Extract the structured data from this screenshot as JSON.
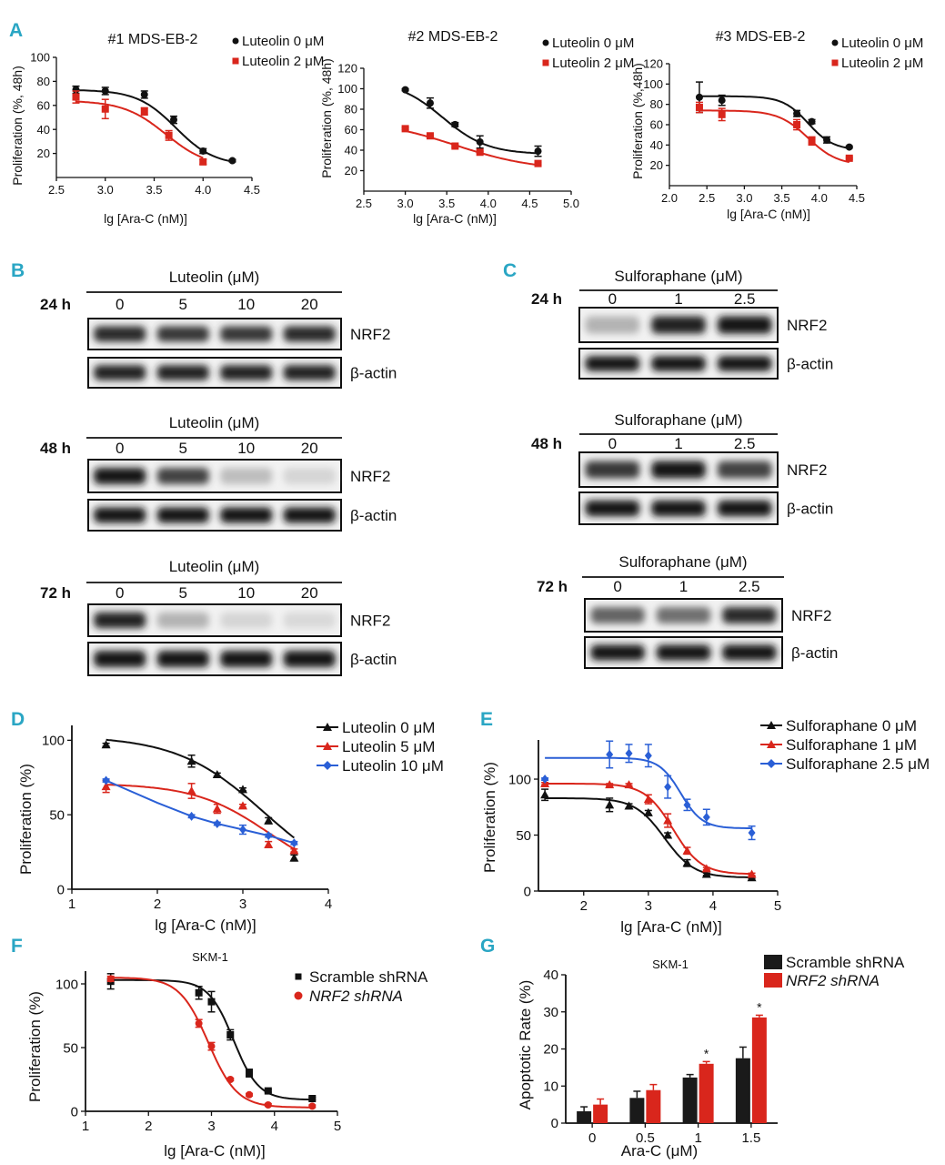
{
  "colors": {
    "black": "#111111",
    "red": "#d9261c",
    "blue": "#2a5fd6",
    "panel_label": "#2aa6c4",
    "bar_black": "#1a1a1a",
    "bar_red": "#d9261c"
  },
  "panel_labels": [
    "A",
    "B",
    "C",
    "D",
    "E",
    "F",
    "G"
  ],
  "axis_labels": {
    "A1_y": "Proliferation (%, 48h)",
    "A2_y": "Proliferation (%, 48h)",
    "A3_y": "Proliferation (%,48h)",
    "A_x": "lg [Ara-C (nM)]",
    "D_y": "Proliferation (%)",
    "D_x": "lg [Ara-C (nM)]",
    "E_y": "Proliferation (%)",
    "E_x": "lg [Ara-C (nM)]",
    "F_y": "Proliferation (%)",
    "F_x": "lg [Ara-C (nM)]",
    "G_y": "Apoptotic Rate (%)",
    "G_x": "Ara-C (μM)"
  },
  "legends": {
    "A": [
      "Luteolin 0 μM",
      "Luteolin 2 μM"
    ],
    "D": [
      "Luteolin 0 μM",
      "Luteolin 5 μM",
      "Luteolin 10 μM"
    ],
    "E": [
      "Sulforaphane 0 μM",
      "Sulforaphane 1 μM",
      "Sulforaphane 2.5 μM"
    ],
    "F": [
      "Scramble shRNA",
      "NRF2 shRNA"
    ],
    "G": [
      "Scramble shRNA",
      "NRF2 shRNA"
    ]
  },
  "chart_data": [
    {
      "id": "A1",
      "type": "line",
      "title": "#1 MDS-EB-2",
      "xlabel": "lg [Ara-C (nM)]",
      "ylabel": "Proliferation (%, 48h)",
      "xlim": [
        2.5,
        4.5
      ],
      "ylim": [
        0,
        100
      ],
      "xticks": [
        "2.5",
        "3.0",
        "3.5",
        "4.0",
        "4.5"
      ],
      "yticks": [
        "20",
        "40",
        "60",
        "80",
        "100"
      ],
      "series": [
        {
          "name": "Luteolin 0 μM",
          "color": "#111111",
          "marker": "circle",
          "x": [
            2.7,
            3.0,
            3.4,
            3.7,
            4.0,
            4.3
          ],
          "y": [
            73,
            72,
            69,
            48,
            22,
            14
          ],
          "err": [
            3,
            3,
            3,
            3,
            2,
            1
          ],
          "fit": {
            "top": 73,
            "bottom": 10,
            "ic50": 3.72,
            "slope": 2.2
          }
        },
        {
          "name": "Luteolin 2 μM",
          "color": "#d9261c",
          "marker": "square",
          "x": [
            2.7,
            3.0,
            3.4,
            3.65,
            4.0
          ],
          "y": [
            67,
            57,
            55,
            35,
            13
          ],
          "err": [
            5,
            8,
            3,
            4,
            2
          ],
          "fit": {
            "top": 64,
            "bottom": 8,
            "ic50": 3.62,
            "slope": 2.0
          }
        }
      ]
    },
    {
      "id": "A2",
      "type": "line",
      "title": "#2 MDS-EB-2",
      "xlabel": "lg [Ara-C (nM)]",
      "ylabel": "Proliferation (%, 48h)",
      "xlim": [
        2.5,
        5.0
      ],
      "ylim": [
        0,
        120
      ],
      "xticks": [
        "2.5",
        "3.0",
        "3.5",
        "4.0",
        "4.5",
        "5.0"
      ],
      "yticks": [
        "20",
        "40",
        "60",
        "80",
        "100",
        "120"
      ],
      "series": [
        {
          "name": "Luteolin 0 μM",
          "color": "#111111",
          "marker": "circle",
          "x": [
            3.0,
            3.3,
            3.6,
            3.9,
            4.6
          ],
          "y": [
            99,
            86,
            65,
            48,
            39
          ],
          "err": [
            1,
            5,
            2,
            6,
            5
          ],
          "fit": {
            "top": 108,
            "bottom": 36,
            "ic50": 3.45,
            "slope": 1.6
          }
        },
        {
          "name": "Luteolin 2 μM",
          "color": "#d9261c",
          "marker": "square",
          "x": [
            3.0,
            3.3,
            3.6,
            3.9,
            4.6
          ],
          "y": [
            61,
            54,
            44,
            38,
            27
          ],
          "err": [
            1,
            1,
            1,
            1,
            1
          ],
          "fit": {
            "top": 70,
            "bottom": 20,
            "ic50": 3.6,
            "slope": 0.9
          }
        }
      ]
    },
    {
      "id": "A3",
      "type": "line",
      "title": "#3 MDS-EB-2",
      "xlabel": "lg [Ara-C (nM)]",
      "ylabel": "Proliferation (%,48h)",
      "xlim": [
        2.0,
        4.5
      ],
      "ylim": [
        0,
        120
      ],
      "xticks": [
        "2.0",
        "2.5",
        "3.0",
        "3.5",
        "4.0",
        "4.5"
      ],
      "yticks": [
        "20",
        "40",
        "60",
        "80",
        "100",
        "120"
      ],
      "series": [
        {
          "name": "Luteolin 0 μM",
          "color": "#111111",
          "marker": "circle",
          "x": [
            2.4,
            2.7,
            3.7,
            3.9,
            4.1,
            4.4
          ],
          "y": [
            87,
            84,
            71,
            63,
            45,
            38
          ],
          "err": [
            15,
            5,
            3,
            2,
            3,
            1
          ],
          "fit": {
            "top": 88,
            "bottom": 35,
            "ic50": 3.85,
            "slope": 2.6
          }
        },
        {
          "name": "Luteolin 2 μM",
          "color": "#d9261c",
          "marker": "square",
          "x": [
            2.4,
            2.7,
            3.7,
            3.9,
            4.4
          ],
          "y": [
            77,
            70,
            60,
            44,
            27
          ],
          "err": [
            5,
            6,
            5,
            4,
            1
          ],
          "fit": {
            "top": 74,
            "bottom": 20,
            "ic50": 3.85,
            "slope": 2.2
          }
        }
      ]
    },
    {
      "id": "D",
      "type": "line",
      "xlabel": "lg [Ara-C (nM)]",
      "ylabel": "Proliferation (%)",
      "xlim": [
        1,
        4
      ],
      "ylim": [
        0,
        110
      ],
      "xticks": [
        "1",
        "2",
        "3",
        "4"
      ],
      "yticks": [
        "0",
        "50",
        "100"
      ],
      "series": [
        {
          "name": "Luteolin 0 μM",
          "color": "#111111",
          "marker": "triangle",
          "x": [
            1.4,
            2.4,
            2.7,
            3.0,
            3.3,
            3.6
          ],
          "y": [
            97,
            86,
            77,
            67,
            46,
            21
          ],
          "err": [
            1,
            4,
            1,
            1,
            2,
            2
          ],
          "fit": {
            "top": 103,
            "bottom": 0,
            "ic50": 3.25,
            "slope": 0.85
          }
        },
        {
          "name": "Luteolin 5 μM",
          "color": "#d9261c",
          "marker": "triangle",
          "x": [
            1.4,
            2.4,
            2.7,
            3.0,
            3.3,
            3.6
          ],
          "y": [
            69,
            66,
            54,
            56,
            30,
            26
          ],
          "err": [
            4,
            5,
            3,
            1,
            2,
            1
          ],
          "fit": {
            "top": 71,
            "bottom": 5,
            "ic50": 3.3,
            "slope": 1.0
          }
        },
        {
          "name": "Luteolin 10 μM",
          "color": "#2a5fd6",
          "marker": "diamond",
          "x": [
            1.4,
            2.4,
            2.7,
            3.0,
            3.3,
            3.6
          ],
          "y": [
            73,
            49,
            44,
            40,
            36,
            31
          ],
          "err": [
            1,
            1,
            1,
            3,
            1,
            1
          ],
          "fit_points": [
            [
              1.4,
              73
            ],
            [
              2.0,
              58
            ],
            [
              2.4,
              49
            ],
            [
              2.7,
              44
            ],
            [
              3.0,
              40
            ],
            [
              3.3,
              36
            ],
            [
              3.6,
              31
            ]
          ]
        }
      ]
    },
    {
      "id": "E",
      "type": "line",
      "xlabel": "lg [Ara-C (nM)]",
      "ylabel": "Proliferation (%)",
      "xlim": [
        1.3,
        5
      ],
      "ylim": [
        0,
        135
      ],
      "xticks": [
        "2",
        "3",
        "4",
        "5"
      ],
      "yticks": [
        "0",
        "50",
        "100"
      ],
      "series": [
        {
          "name": "Sulforaphane 0 μM",
          "color": "#111111",
          "marker": "triangle",
          "x": [
            1.4,
            2.4,
            2.7,
            3.0,
            3.3,
            3.6,
            3.9,
            4.6
          ],
          "y": [
            86,
            77,
            76,
            70,
            50,
            25,
            15,
            12
          ],
          "err": [
            5,
            6,
            2,
            2,
            2,
            3,
            1,
            1
          ],
          "fit": {
            "top": 83,
            "bottom": 12,
            "ic50": 3.25,
            "slope": 1.9
          }
        },
        {
          "name": "Sulforaphane 1 μM",
          "color": "#d9261c",
          "marker": "triangle",
          "x": [
            1.4,
            2.4,
            2.7,
            3.0,
            3.3,
            3.6,
            3.9,
            4.6
          ],
          "y": [
            96,
            95,
            95,
            82,
            63,
            36,
            20,
            15
          ],
          "err": [
            1,
            1,
            1,
            4,
            6,
            3,
            1,
            1
          ],
          "fit": {
            "top": 96,
            "bottom": 15,
            "ic50": 3.38,
            "slope": 2.0
          }
        },
        {
          "name": "Sulforaphane 2.5 μM",
          "color": "#2a5fd6",
          "marker": "diamond",
          "x": [
            1.4,
            2.4,
            2.7,
            3.0,
            3.3,
            3.6,
            3.9,
            4.6
          ],
          "y": [
            100,
            122,
            123,
            121,
            93,
            77,
            66,
            52
          ],
          "err": [
            1,
            12,
            8,
            10,
            10,
            5,
            7,
            6
          ],
          "fit": {
            "top": 119,
            "bottom": 56,
            "ic50": 3.5,
            "slope": 2.6
          }
        }
      ]
    },
    {
      "id": "F",
      "type": "line",
      "title": "SKM-1",
      "xlabel": "lg [Ara-C (nM)]",
      "ylabel": "Proliferation (%)",
      "xlim": [
        1,
        5
      ],
      "ylim": [
        0,
        110
      ],
      "xticks": [
        "1",
        "2",
        "3",
        "4",
        "5"
      ],
      "yticks": [
        "0",
        "50",
        "100"
      ],
      "series": [
        {
          "name": "Scramble shRNA",
          "color": "#111111",
          "marker": "square",
          "x": [
            1.4,
            2.8,
            3.0,
            3.3,
            3.6,
            3.9,
            4.6
          ],
          "y": [
            102,
            93,
            86,
            60,
            30,
            16,
            10
          ],
          "err": [
            6,
            5,
            8,
            4,
            3,
            1,
            1
          ],
          "fit": {
            "top": 103,
            "bottom": 9,
            "ic50": 3.35,
            "slope": 2.2
          }
        },
        {
          "name": "NRF2 shRNA",
          "color": "#d9261c",
          "marker": "circle",
          "x": [
            1.4,
            2.8,
            3.0,
            3.3,
            3.6,
            3.9,
            4.6
          ],
          "y": [
            104,
            69,
            51,
            25,
            13,
            5,
            4
          ],
          "err": [
            2,
            3,
            3,
            1,
            1,
            1,
            1
          ],
          "fit": {
            "top": 105,
            "bottom": 3,
            "ic50": 2.95,
            "slope": 1.9
          }
        }
      ]
    },
    {
      "id": "G",
      "type": "bar",
      "title": "SKM-1",
      "xlabel": "Ara-C (μM)",
      "ylabel": "Apoptotic Rate (%)",
      "categories": [
        "0",
        "0.5",
        "1",
        "1.5"
      ],
      "ylim": [
        0,
        40
      ],
      "yticks": [
        "0",
        "10",
        "20",
        "30",
        "40"
      ],
      "series": [
        {
          "name": "Scramble shRNA",
          "color": "#1a1a1a",
          "values": [
            3.2,
            6.8,
            12.3,
            17.5
          ],
          "err": [
            1.2,
            1.8,
            0.8,
            3.0
          ]
        },
        {
          "name": "NRF2 shRNA",
          "color": "#d9261c",
          "values": [
            5.0,
            8.9,
            16.0,
            28.5
          ],
          "err": [
            1.5,
            1.5,
            0.6,
            0.6
          ]
        }
      ],
      "significance": [
        "",
        "",
        "*",
        "*"
      ]
    }
  ],
  "blots": {
    "B": [
      {
        "time": "24 h",
        "title": "Luteolin (μM)",
        "doses": [
          "0",
          "5",
          "10",
          "20"
        ],
        "bands": [
          "NRF2",
          "β-actin"
        ]
      },
      {
        "time": "48 h",
        "title": "Luteolin (μM)",
        "doses": [
          "0",
          "5",
          "10",
          "20"
        ],
        "bands": [
          "NRF2",
          "β-actin"
        ]
      },
      {
        "time": "72 h",
        "title": "Luteolin (μM)",
        "doses": [
          "0",
          "5",
          "10",
          "20"
        ],
        "bands": [
          "NRF2",
          "β-actin"
        ]
      }
    ],
    "C": [
      {
        "time": "24 h",
        "title": "Sulforaphane (μM)",
        "doses": [
          "0",
          "1",
          "2.5"
        ],
        "bands": [
          "NRF2",
          "β-actin"
        ]
      },
      {
        "time": "48 h",
        "title": "Sulforaphane (μM)",
        "doses": [
          "0",
          "1",
          "2.5"
        ],
        "bands": [
          "NRF2",
          "β-actin"
        ]
      },
      {
        "time": "72 h",
        "title": "Sulforaphane (μM)",
        "doses": [
          "0",
          "1",
          "2.5"
        ],
        "bands": [
          "NRF2",
          "β-actin"
        ]
      }
    ]
  },
  "blot_intensity": {
    "B": [
      {
        "NRF2": [
          0.85,
          0.8,
          0.8,
          0.85
        ],
        "actin": [
          0.9,
          0.9,
          0.9,
          0.9
        ]
      },
      {
        "NRF2": [
          0.95,
          0.75,
          0.2,
          0.1
        ],
        "actin": [
          0.95,
          0.95,
          0.95,
          0.95
        ]
      },
      {
        "NRF2": [
          0.9,
          0.25,
          0.1,
          0.08
        ],
        "actin": [
          0.95,
          0.95,
          0.95,
          0.95
        ]
      }
    ],
    "C": [
      {
        "NRF2": [
          0.25,
          0.9,
          0.95
        ],
        "actin": [
          0.95,
          0.95,
          0.95
        ]
      },
      {
        "NRF2": [
          0.8,
          0.95,
          0.75
        ],
        "actin": [
          0.95,
          0.95,
          0.95
        ]
      },
      {
        "NRF2": [
          0.6,
          0.55,
          0.85
        ],
        "actin": [
          0.95,
          0.95,
          0.95
        ]
      }
    ]
  }
}
